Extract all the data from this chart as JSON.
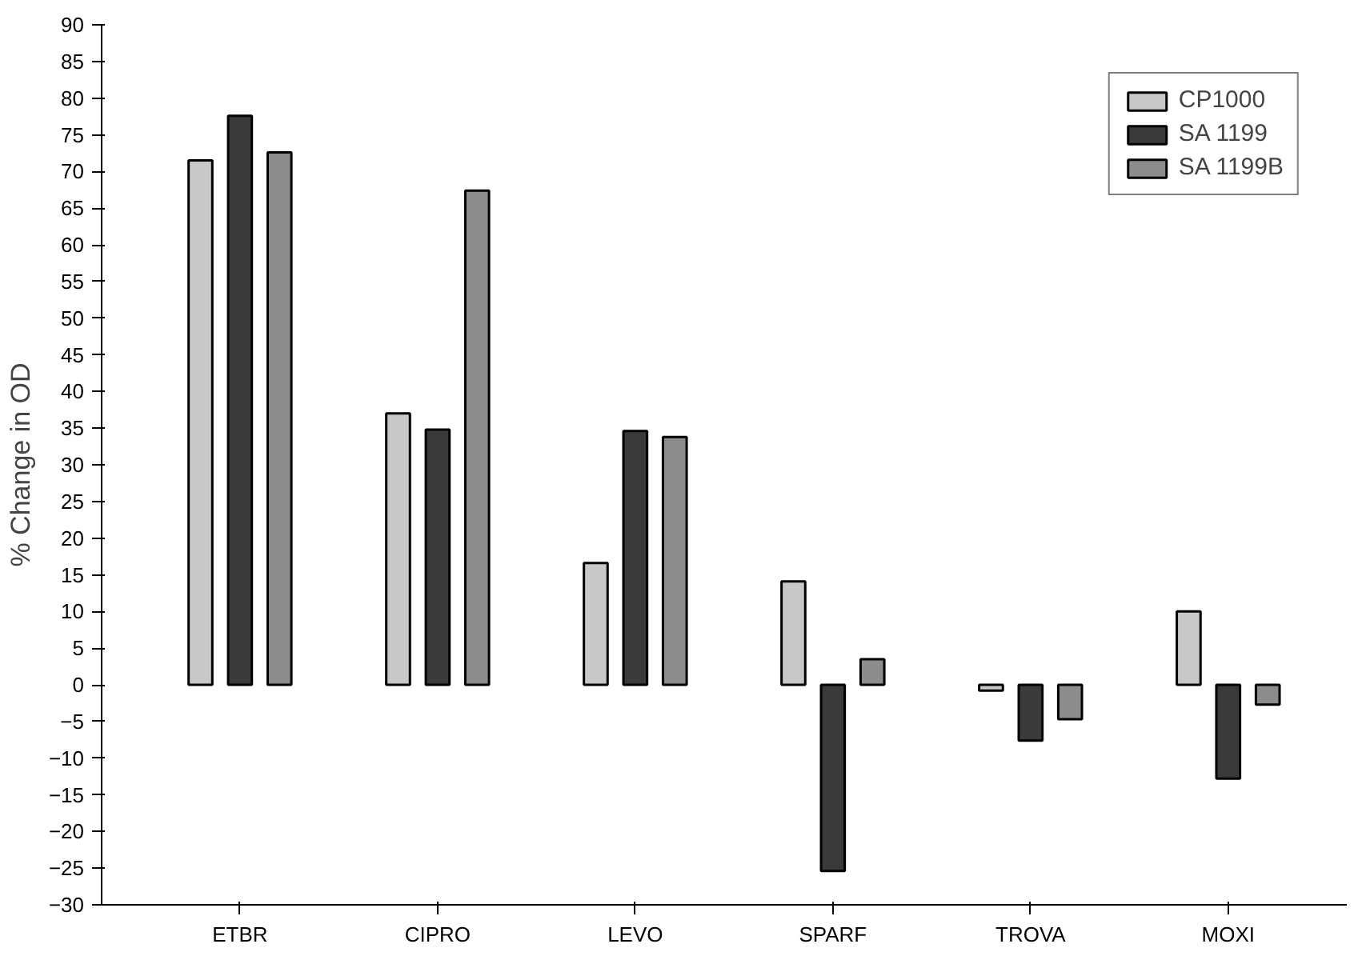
{
  "chart_data": {
    "type": "bar",
    "ylabel": "% Change in OD",
    "categories": [
      "ETBR",
      "CIPRO",
      "LEVO",
      "SPARF",
      "TROVA",
      "MOXI"
    ],
    "series": [
      {
        "name": "CP1000",
        "color": "#c8c8c8",
        "values": [
          71.5,
          37.0,
          16.6,
          14.1,
          -0.8,
          10.0
        ]
      },
      {
        "name": "SA 1199",
        "color": "#3a3a3a",
        "values": [
          77.6,
          34.8,
          34.6,
          -25.4,
          -7.6,
          -12.8
        ]
      },
      {
        "name": "SA 1199B",
        "color": "#8c8c8c",
        "values": [
          72.6,
          67.4,
          33.8,
          3.5,
          -4.7,
          -2.7
        ]
      }
    ],
    "ylim": [
      -30,
      90
    ],
    "yticks": [
      -30,
      -25,
      -20,
      -15,
      -10,
      -5,
      0,
      5,
      10,
      15,
      20,
      25,
      30,
      35,
      40,
      45,
      50,
      55,
      60,
      65,
      70,
      75,
      80,
      85,
      90
    ],
    "grid": false,
    "legend": "top right"
  }
}
